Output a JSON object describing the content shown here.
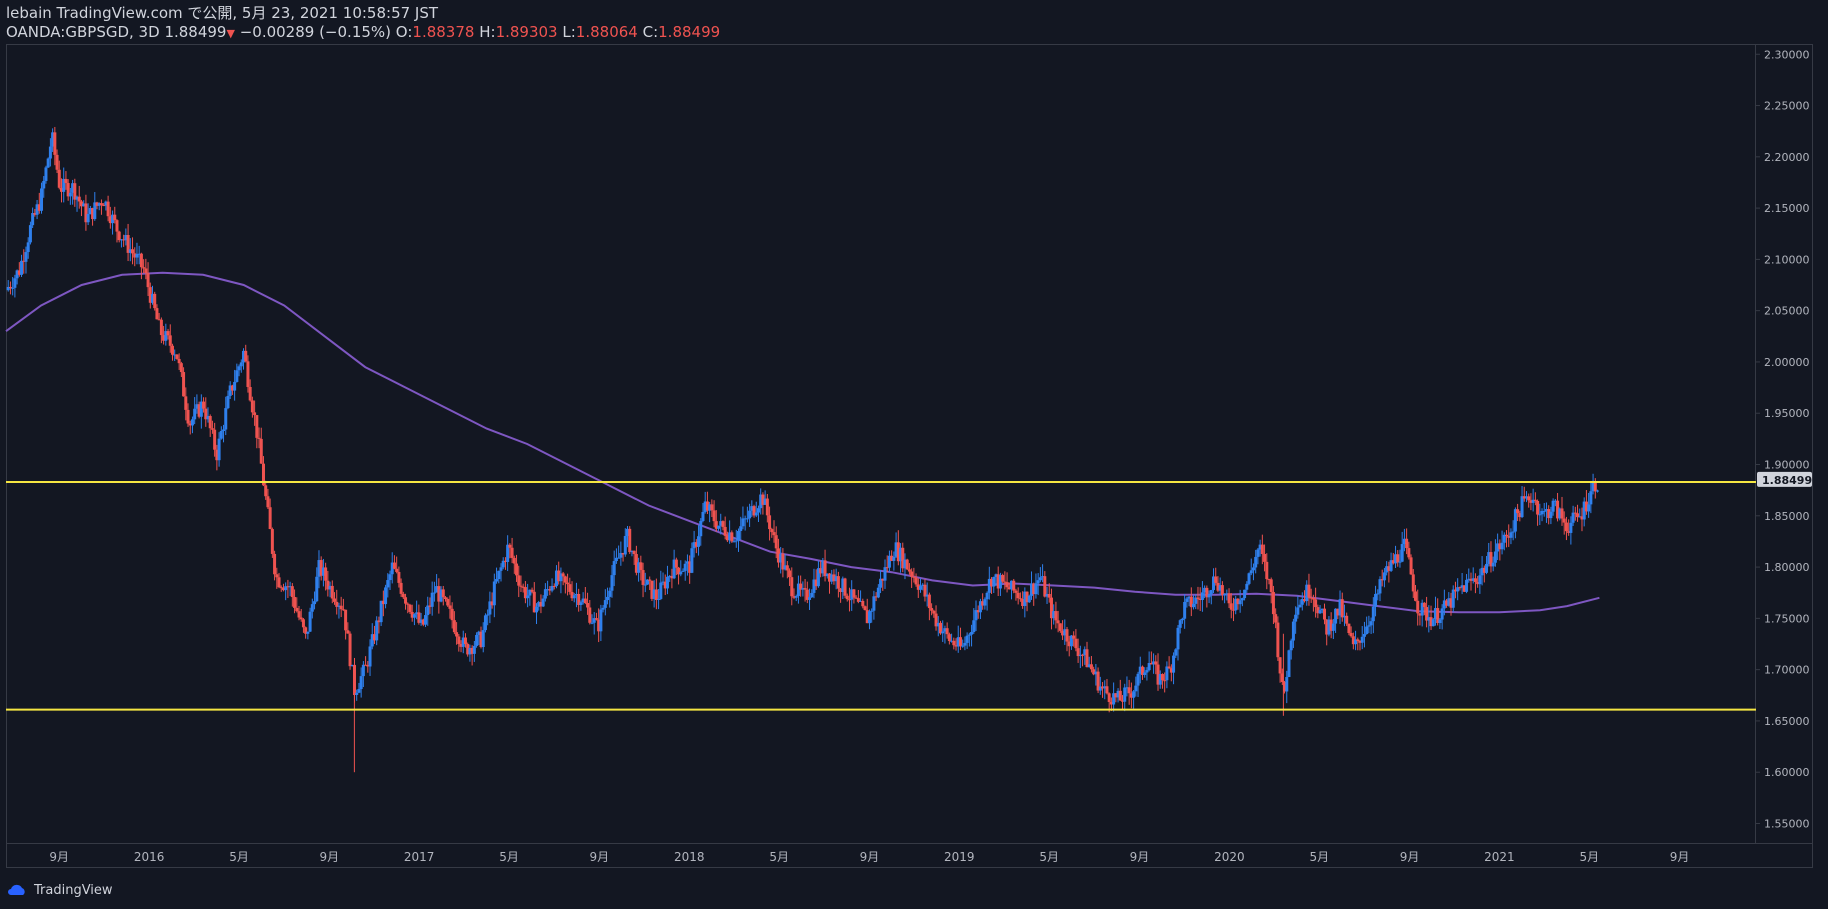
{
  "header": {
    "published_line": "lebain TradingView.com で公開, 5月 23, 2021 10:58:57 JST",
    "symbol": "OANDA:GBPSGD, 3D",
    "last_price": "1.88499",
    "down_triangle": "▼",
    "change": "−0.00289 (−0.15%)",
    "open_label": "O:",
    "open_value": "1.88378",
    "high_label": "H:",
    "high_value": "1.89303",
    "low_label": "L:",
    "low_value": "1.88064",
    "close_label": "C:",
    "close_value": "1.88499"
  },
  "footer": {
    "brand": "TradingView"
  },
  "colors": {
    "background": "#131722",
    "up_candle": "#2f80ed",
    "down_candle": "#ef5350",
    "moving_average": "#7e57c2",
    "support_resistance": "#f5e642",
    "grid_border": "#363a45",
    "last_price_tag_bg": "#d1d4dc"
  },
  "chart_data": {
    "type": "candlestick",
    "title": "OANDA:GBPSGD 3D",
    "ylim": [
      1.53,
      2.31
    ],
    "xlim": [
      2015.47,
      2021.95
    ],
    "y_ticks": [
      "2.30000",
      "2.25000",
      "2.20000",
      "2.15000",
      "2.10000",
      "2.05000",
      "2.00000",
      "1.95000",
      "1.90000",
      "1.85000",
      "1.80000",
      "1.75000",
      "1.70000",
      "1.65000",
      "1.60000",
      "1.55000"
    ],
    "y_tick_values": [
      2.3,
      2.25,
      2.2,
      2.15,
      2.1,
      2.05,
      2.0,
      1.95,
      1.9,
      1.85,
      1.8,
      1.75,
      1.7,
      1.65,
      1.6,
      1.55
    ],
    "x_ticks": [
      {
        "label": "9月",
        "t": 2015.667
      },
      {
        "label": "2016",
        "t": 2016.0
      },
      {
        "label": "5月",
        "t": 2016.333
      },
      {
        "label": "9月",
        "t": 2016.667
      },
      {
        "label": "2017",
        "t": 2017.0
      },
      {
        "label": "5月",
        "t": 2017.333
      },
      {
        "label": "9月",
        "t": 2017.667
      },
      {
        "label": "2018",
        "t": 2018.0
      },
      {
        "label": "5月",
        "t": 2018.333
      },
      {
        "label": "9月",
        "t": 2018.667
      },
      {
        "label": "2019",
        "t": 2019.0
      },
      {
        "label": "5月",
        "t": 2019.333
      },
      {
        "label": "9月",
        "t": 2019.667
      },
      {
        "label": "2020",
        "t": 2020.0
      },
      {
        "label": "5月",
        "t": 2020.333
      },
      {
        "label": "9月",
        "t": 2020.667
      },
      {
        "label": "2021",
        "t": 2021.0
      },
      {
        "label": "5月",
        "t": 2021.333
      },
      {
        "label": "9月",
        "t": 2021.667
      }
    ],
    "horizontal_lines": [
      {
        "name": "resistance",
        "value": 1.883
      },
      {
        "name": "support",
        "value": 1.661
      }
    ],
    "last_price_label": "1.88499",
    "last_price_value": 1.88499,
    "price_path": [
      [
        2015.47,
        2.07
      ],
      [
        2015.52,
        2.09
      ],
      [
        2015.56,
        2.13
      ],
      [
        2015.6,
        2.16
      ],
      [
        2015.64,
        2.22
      ],
      [
        2015.67,
        2.17
      ],
      [
        2015.72,
        2.17
      ],
      [
        2015.77,
        2.14
      ],
      [
        2015.83,
        2.16
      ],
      [
        2015.88,
        2.13
      ],
      [
        2015.93,
        2.11
      ],
      [
        2015.98,
        2.09
      ],
      [
        2016.04,
        2.03
      ],
      [
        2016.1,
        2.01
      ],
      [
        2016.15,
        1.94
      ],
      [
        2016.2,
        1.96
      ],
      [
        2016.25,
        1.91
      ],
      [
        2016.3,
        1.97
      ],
      [
        2016.35,
        2.01
      ],
      [
        2016.4,
        1.93
      ],
      [
        2016.47,
        1.79
      ],
      [
        2016.52,
        1.78
      ],
      [
        2016.58,
        1.73
      ],
      [
        2016.63,
        1.8
      ],
      [
        2016.67,
        1.78
      ],
      [
        2016.72,
        1.76
      ],
      [
        2016.76,
        1.68
      ],
      [
        2016.8,
        1.7
      ],
      [
        2016.85,
        1.75
      ],
      [
        2016.9,
        1.8
      ],
      [
        2016.95,
        1.77
      ],
      [
        2017.01,
        1.74
      ],
      [
        2017.06,
        1.78
      ],
      [
        2017.12,
        1.75
      ],
      [
        2017.17,
        1.72
      ],
      [
        2017.23,
        1.73
      ],
      [
        2017.28,
        1.78
      ],
      [
        2017.33,
        1.82
      ],
      [
        2017.38,
        1.78
      ],
      [
        2017.44,
        1.76
      ],
      [
        2017.5,
        1.79
      ],
      [
        2017.55,
        1.78
      ],
      [
        2017.6,
        1.77
      ],
      [
        2017.66,
        1.74
      ],
      [
        2017.71,
        1.79
      ],
      [
        2017.77,
        1.83
      ],
      [
        2017.82,
        1.79
      ],
      [
        2017.88,
        1.77
      ],
      [
        2017.94,
        1.8
      ],
      [
        2018.0,
        1.8
      ],
      [
        2018.06,
        1.86
      ],
      [
        2018.11,
        1.84
      ],
      [
        2018.17,
        1.83
      ],
      [
        2018.22,
        1.85
      ],
      [
        2018.27,
        1.87
      ],
      [
        2018.32,
        1.82
      ],
      [
        2018.38,
        1.78
      ],
      [
        2018.43,
        1.77
      ],
      [
        2018.49,
        1.8
      ],
      [
        2018.54,
        1.79
      ],
      [
        2018.6,
        1.77
      ],
      [
        2018.66,
        1.75
      ],
      [
        2018.7,
        1.78
      ],
      [
        2018.76,
        1.82
      ],
      [
        2018.81,
        1.8
      ],
      [
        2018.86,
        1.78
      ],
      [
        2018.91,
        1.75
      ],
      [
        2018.96,
        1.73
      ],
      [
        2019.01,
        1.72
      ],
      [
        2019.07,
        1.76
      ],
      [
        2019.12,
        1.79
      ],
      [
        2019.18,
        1.78
      ],
      [
        2019.24,
        1.77
      ],
      [
        2019.3,
        1.79
      ],
      [
        2019.35,
        1.75
      ],
      [
        2019.41,
        1.73
      ],
      [
        2019.47,
        1.71
      ],
      [
        2019.53,
        1.68
      ],
      [
        2019.59,
        1.67
      ],
      [
        2019.64,
        1.68
      ],
      [
        2019.7,
        1.71
      ],
      [
        2019.74,
        1.69
      ],
      [
        2019.78,
        1.7
      ],
      [
        2019.83,
        1.76
      ],
      [
        2019.89,
        1.77
      ],
      [
        2019.95,
        1.79
      ],
      [
        2020.0,
        1.76
      ],
      [
        2020.06,
        1.78
      ],
      [
        2020.11,
        1.82
      ],
      [
        2020.16,
        1.77
      ],
      [
        2020.2,
        1.67
      ],
      [
        2020.24,
        1.76
      ],
      [
        2020.3,
        1.78
      ],
      [
        2020.36,
        1.74
      ],
      [
        2020.41,
        1.76
      ],
      [
        2020.46,
        1.72
      ],
      [
        2020.52,
        1.75
      ],
      [
        2020.57,
        1.79
      ],
      [
        2020.62,
        1.81
      ],
      [
        2020.65,
        1.82
      ],
      [
        2020.7,
        1.76
      ],
      [
        2020.75,
        1.75
      ],
      [
        2020.8,
        1.76
      ],
      [
        2020.86,
        1.78
      ],
      [
        2020.92,
        1.79
      ],
      [
        2020.97,
        1.81
      ],
      [
        2021.03,
        1.83
      ],
      [
        2021.08,
        1.86
      ],
      [
        2021.12,
        1.87
      ],
      [
        2021.16,
        1.85
      ],
      [
        2021.2,
        1.86
      ],
      [
        2021.25,
        1.84
      ],
      [
        2021.3,
        1.85
      ],
      [
        2021.35,
        1.88
      ],
      [
        2021.37,
        1.885
      ]
    ],
    "moving_average": [
      [
        2015.47,
        2.03
      ],
      [
        2015.6,
        2.055
      ],
      [
        2015.75,
        2.075
      ],
      [
        2015.9,
        2.085
      ],
      [
        2016.05,
        2.087
      ],
      [
        2016.2,
        2.085
      ],
      [
        2016.35,
        2.075
      ],
      [
        2016.5,
        2.055
      ],
      [
        2016.65,
        2.025
      ],
      [
        2016.8,
        1.995
      ],
      [
        2016.95,
        1.975
      ],
      [
        2017.1,
        1.955
      ],
      [
        2017.25,
        1.935
      ],
      [
        2017.4,
        1.92
      ],
      [
        2017.55,
        1.9
      ],
      [
        2017.7,
        1.88
      ],
      [
        2017.85,
        1.86
      ],
      [
        2018.0,
        1.845
      ],
      [
        2018.15,
        1.83
      ],
      [
        2018.3,
        1.815
      ],
      [
        2018.45,
        1.808
      ],
      [
        2018.6,
        1.8
      ],
      [
        2018.75,
        1.795
      ],
      [
        2018.9,
        1.787
      ],
      [
        2019.05,
        1.782
      ],
      [
        2019.2,
        1.784
      ],
      [
        2019.35,
        1.782
      ],
      [
        2019.5,
        1.78
      ],
      [
        2019.65,
        1.776
      ],
      [
        2019.8,
        1.773
      ],
      [
        2019.95,
        1.773
      ],
      [
        2020.1,
        1.774
      ],
      [
        2020.25,
        1.772
      ],
      [
        2020.4,
        1.767
      ],
      [
        2020.55,
        1.762
      ],
      [
        2020.7,
        1.757
      ],
      [
        2020.85,
        1.756
      ],
      [
        2021.0,
        1.756
      ],
      [
        2021.15,
        1.758
      ],
      [
        2021.25,
        1.762
      ],
      [
        2021.37,
        1.77
      ]
    ],
    "notable_wicks": [
      {
        "t": 2016.76,
        "low": 1.6
      },
      {
        "t": 2020.2,
        "low": 1.655
      }
    ]
  }
}
